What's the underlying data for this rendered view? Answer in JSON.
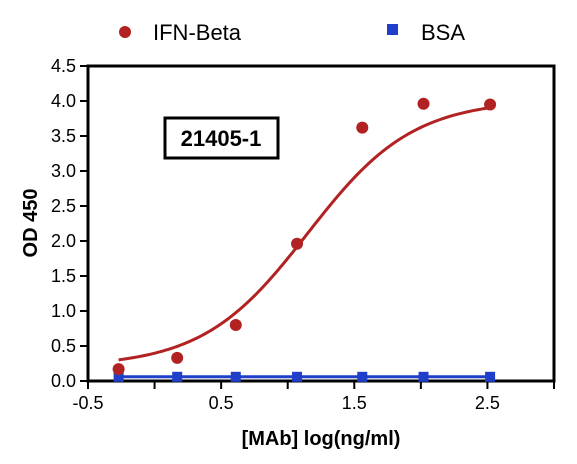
{
  "chart_data": {
    "type": "scatter",
    "title": "",
    "xlabel": "[MAb] log(ng/ml)",
    "ylabel": "OD 450",
    "xlim": [
      -0.5,
      3.0
    ],
    "ylim": [
      0.0,
      4.5
    ],
    "x_ticks": [
      -0.5,
      0.0,
      0.5,
      1.0,
      1.5,
      2.0,
      2.5,
      3.0
    ],
    "x_tick_labels": [
      "-0.5",
      "0.5",
      "1.5",
      "2.5"
    ],
    "x_tick_label_values": [
      -0.5,
      0.5,
      1.5,
      2.5
    ],
    "y_ticks": [
      0.0,
      0.5,
      1.0,
      1.5,
      2.0,
      2.5,
      3.0,
      3.5,
      4.0,
      4.5
    ],
    "y_tick_labels": [
      "0.0",
      "0.5",
      "1.0",
      "1.5",
      "2.0",
      "2.5",
      "3.0",
      "3.5",
      "4.0",
      "4.5"
    ],
    "grid": false,
    "legend_position": "top",
    "annotation": "21405-1",
    "series": [
      {
        "name": "IFN-Beta",
        "color": "#b22222",
        "marker": "circle",
        "x": [
          -0.27,
          0.17,
          0.61,
          1.07,
          1.56,
          2.02,
          2.52
        ],
        "y": [
          0.17,
          0.33,
          0.8,
          1.96,
          3.62,
          3.96,
          3.95
        ],
        "fit": {
          "model": "4PL",
          "bottom": 0.2,
          "top": 4.02,
          "logEC50": 1.15,
          "hill": 1.1
        }
      },
      {
        "name": "BSA",
        "color": "#1f3fc8",
        "marker": "square",
        "x": [
          -0.27,
          0.17,
          0.61,
          1.07,
          1.56,
          2.02,
          2.52
        ],
        "y": [
          0.06,
          0.06,
          0.06,
          0.06,
          0.06,
          0.06,
          0.06
        ]
      }
    ]
  }
}
